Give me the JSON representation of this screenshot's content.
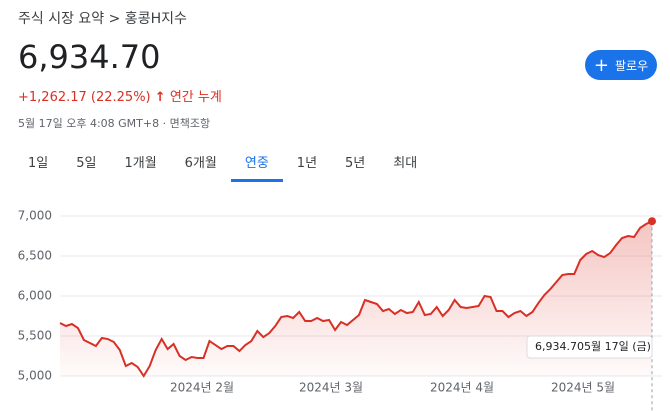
{
  "breadcrumb": "주식 시장 요약 > 홍콩H지수",
  "price": "6,934.70",
  "change": "+1,262.17 (22.25%)",
  "change_arrow": "↑",
  "change_period": "연간 누계",
  "timestamp": "5월 17일 오후 4:08 GMT+8",
  "separator": "·",
  "disclaimer": "면책조항",
  "follow_icon": "+",
  "follow_button": "팔로우",
  "tabs": [
    "1일",
    "5일",
    "1개월",
    "6개월",
    "연중",
    "1년",
    "5년",
    "최대"
  ],
  "active_tab": 4,
  "tooltip_date": "5월 17일 (금)",
  "chart_data": {
    "type": "line",
    "color": "#d93025",
    "ylim": [
      5000,
      7000
    ],
    "yticks": [
      {
        "value": 5000,
        "label": "5,000"
      },
      {
        "value": 5500,
        "label": "5,500"
      },
      {
        "value": 6000,
        "label": "6,000"
      },
      {
        "value": 6500,
        "label": "6,500"
      },
      {
        "value": 7000,
        "label": "7,000"
      }
    ],
    "grid": true,
    "xtick_labels": [
      "2024년 2월",
      "2024년 3월",
      "2024년 4월",
      "2024년 5월"
    ],
    "values": [
      5662,
      5625,
      5650,
      5600,
      5450,
      5412,
      5375,
      5475,
      5462,
      5425,
      5325,
      5125,
      5162,
      5112,
      5000,
      5125,
      5325,
      5462,
      5337,
      5400,
      5250,
      5200,
      5237,
      5225,
      5225,
      5437,
      5387,
      5337,
      5375,
      5375,
      5312,
      5387,
      5437,
      5562,
      5487,
      5537,
      5625,
      5737,
      5750,
      5725,
      5800,
      5687,
      5687,
      5725,
      5687,
      5700,
      5575,
      5675,
      5637,
      5700,
      5762,
      5950,
      5925,
      5900,
      5812,
      5837,
      5775,
      5825,
      5787,
      5800,
      5925,
      5762,
      5775,
      5862,
      5750,
      5825,
      5950,
      5862,
      5850,
      5862,
      5875,
      6000,
      5987,
      5812,
      5812,
      5737,
      5787,
      5812,
      5750,
      5800,
      5912,
      6012,
      6087,
      6175,
      6262,
      6275,
      6275,
      6450,
      6525,
      6562,
      6512,
      6487,
      6537,
      6637,
      6725,
      6750,
      6737,
      6850,
      6900,
      6934.7
    ]
  }
}
